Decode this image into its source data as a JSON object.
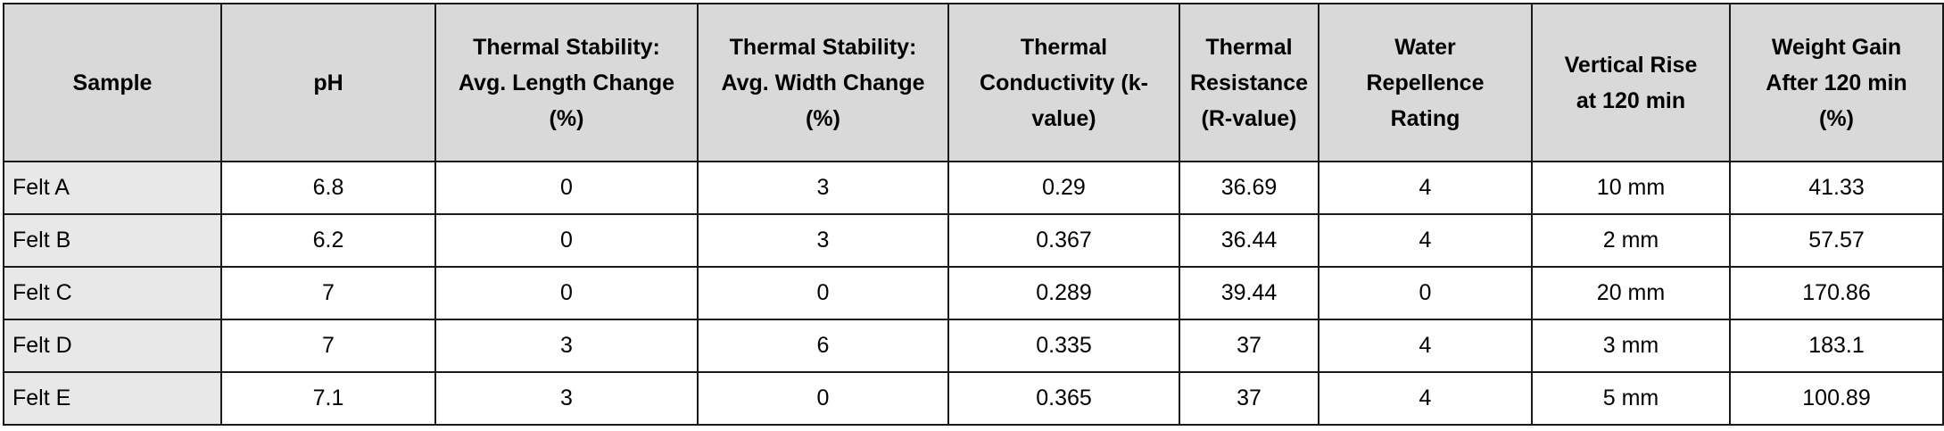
{
  "table": {
    "headers": [
      [
        "Sample"
      ],
      [
        "pH"
      ],
      [
        "Thermal Stability:",
        "Avg. Length Change",
        "(%)"
      ],
      [
        "Thermal Stability:",
        "Avg. Width Change",
        "(%)"
      ],
      [
        "Thermal",
        "Conductivity (k-",
        "value)"
      ],
      [
        "Thermal",
        "Resistance",
        "(R-value)"
      ],
      [
        "Water",
        "Repellence",
        "Rating"
      ],
      [
        "Vertical Rise",
        "at 120 min"
      ],
      [
        "Weight Gain",
        "After 120 min",
        "(%)"
      ]
    ],
    "rows": [
      [
        "Felt A",
        "6.8",
        "0",
        "3",
        "0.29",
        "36.69",
        "4",
        "10 mm",
        "41.33"
      ],
      [
        "Felt B",
        "6.2",
        "0",
        "3",
        "0.367",
        "36.44",
        "4",
        "2 mm",
        "57.57"
      ],
      [
        "Felt C",
        "7",
        "0",
        "0",
        "0.289",
        "39.44",
        "0",
        "20 mm",
        "170.86"
      ],
      [
        "Felt D",
        "7",
        "3",
        "6",
        "0.335",
        "37",
        "4",
        "3 mm",
        "183.1"
      ],
      [
        "Felt E",
        "7.1",
        "3",
        "0",
        "0.365",
        "37",
        "4",
        "5 mm",
        "100.89"
      ]
    ]
  },
  "colors": {
    "header_bg": "#d9d9d9",
    "sample_cell_bg": "#e8e8e8",
    "border": "#1a1a1a"
  }
}
